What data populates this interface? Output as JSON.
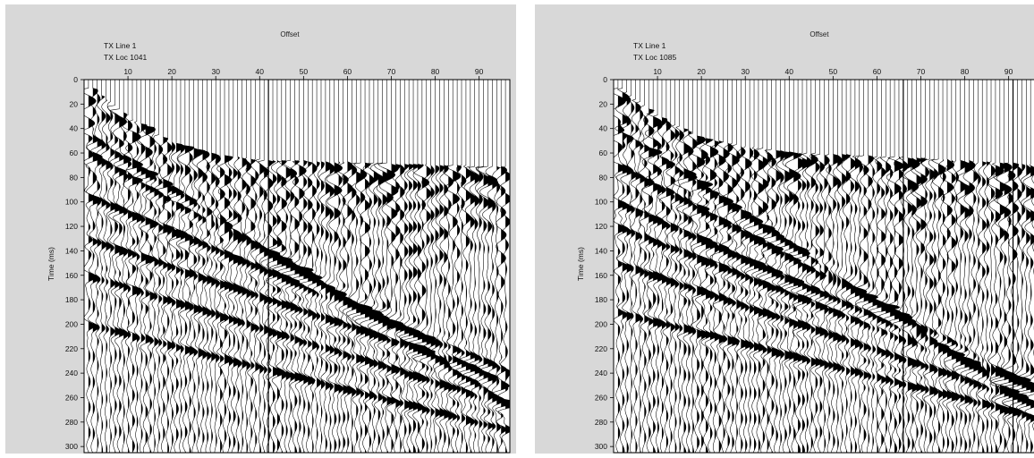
{
  "chart_data": [
    {
      "type": "seismic-wiggle",
      "title": "Offset",
      "subtitle": [
        "TX Line 1",
        "TX Loc 1041"
      ],
      "ylabel": "Time (ms)",
      "xlim": [
        0,
        97
      ],
      "ylim": [
        0,
        305
      ],
      "y_inverted": true,
      "x_ticks": [
        10,
        20,
        30,
        40,
        50,
        60,
        70,
        80,
        90
      ],
      "y_ticks": [
        0,
        20,
        40,
        60,
        80,
        100,
        120,
        140,
        160,
        180,
        200,
        220,
        240,
        260,
        280,
        300
      ],
      "trace_count": 96,
      "first_break": [
        {
          "offset": 2,
          "time_ms": 8
        },
        {
          "offset": 10,
          "time_ms": 30
        },
        {
          "offset": 20,
          "time_ms": 52
        },
        {
          "offset": 30,
          "time_ms": 62
        },
        {
          "offset": 40,
          "time_ms": 66
        },
        {
          "offset": 60,
          "time_ms": 68
        },
        {
          "offset": 97,
          "time_ms": 72
        }
      ],
      "reflections": [
        {
          "t0_ms": 45,
          "slope_ms_per_offset": 2.3,
          "amplitude": 1.0
        },
        {
          "t0_ms": 60,
          "slope_ms_per_offset": 2.0,
          "amplitude": 0.9
        },
        {
          "t0_ms": 95,
          "slope_ms_per_offset": 1.5,
          "amplitude": 1.0
        },
        {
          "t0_ms": 130,
          "slope_ms_per_offset": 1.2,
          "amplitude": 0.85
        },
        {
          "t0_ms": 160,
          "slope_ms_per_offset": 1.1,
          "amplitude": 0.8
        },
        {
          "t0_ms": 200,
          "slope_ms_per_offset": 0.9,
          "amplitude": 0.75
        }
      ],
      "marked_traces": [
        42
      ]
    },
    {
      "type": "seismic-wiggle",
      "title": "Offset",
      "subtitle": [
        "TX Line 1",
        "TX Loc 1085"
      ],
      "ylabel": "Time (ms)",
      "xlim": [
        0,
        97
      ],
      "ylim": [
        0,
        305
      ],
      "y_inverted": true,
      "x_ticks": [
        10,
        20,
        30,
        40,
        50,
        60,
        70,
        80,
        90
      ],
      "y_ticks": [
        0,
        20,
        40,
        60,
        80,
        100,
        120,
        140,
        160,
        180,
        200,
        220,
        240,
        260,
        280,
        300
      ],
      "trace_count": 96,
      "first_break": [
        {
          "offset": 2,
          "time_ms": 8
        },
        {
          "offset": 10,
          "time_ms": 30
        },
        {
          "offset": 20,
          "time_ms": 48
        },
        {
          "offset": 30,
          "time_ms": 55
        },
        {
          "offset": 40,
          "time_ms": 60
        },
        {
          "offset": 66,
          "time_ms": 64
        },
        {
          "offset": 97,
          "time_ms": 70
        }
      ],
      "reflections": [
        {
          "t0_ms": 40,
          "slope_ms_per_offset": 2.4,
          "amplitude": 1.0
        },
        {
          "t0_ms": 70,
          "slope_ms_per_offset": 1.9,
          "amplitude": 0.9
        },
        {
          "t0_ms": 100,
          "slope_ms_per_offset": 1.6,
          "amplitude": 1.0
        },
        {
          "t0_ms": 120,
          "slope_ms_per_offset": 1.4,
          "amplitude": 0.85
        },
        {
          "t0_ms": 150,
          "slope_ms_per_offset": 1.2,
          "amplitude": 0.85
        },
        {
          "t0_ms": 190,
          "slope_ms_per_offset": 0.9,
          "amplitude": 0.8
        }
      ],
      "marked_traces": [
        66,
        91
      ]
    }
  ]
}
